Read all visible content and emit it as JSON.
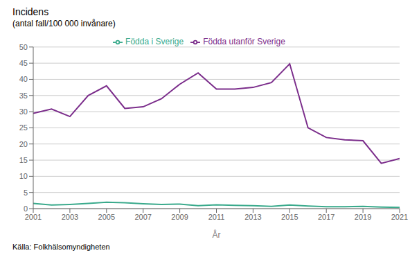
{
  "chart_data": {
    "type": "line",
    "title": "Incidens",
    "subtitle": "(antal fall/100 000 invånare)",
    "xlabel": "År",
    "x": [
      2001,
      2002,
      2003,
      2004,
      2005,
      2006,
      2007,
      2008,
      2009,
      2010,
      2011,
      2012,
      2013,
      2014,
      2015,
      2016,
      2017,
      2018,
      2019,
      2020,
      2021
    ],
    "series": [
      {
        "name": "Födda i Sverige",
        "color": "#3aaa8c",
        "values": [
          1.6,
          1.1,
          1.3,
          1.6,
          2.0,
          1.8,
          1.5,
          1.3,
          1.4,
          0.9,
          1.2,
          1.0,
          0.9,
          0.7,
          1.1,
          0.8,
          0.6,
          0.6,
          0.7,
          0.5,
          0.4
        ]
      },
      {
        "name": "Födda utanför Sverige",
        "color": "#7b2d8b",
        "values": [
          29.5,
          30.8,
          28.5,
          35.0,
          38.0,
          31.0,
          31.5,
          34.0,
          38.5,
          42.0,
          37.0,
          37.0,
          37.5,
          39.0,
          44.8,
          25.0,
          22.0,
          21.3,
          21.0,
          14.0,
          15.5
        ]
      }
    ],
    "xlim": [
      2001,
      2021
    ],
    "xticks": [
      2001,
      2003,
      2005,
      2007,
      2009,
      2011,
      2013,
      2015,
      2017,
      2019,
      2021
    ],
    "ylim": [
      0,
      50
    ],
    "yticks": [
      0,
      5,
      10,
      15,
      20,
      25,
      30,
      35,
      40,
      45,
      50
    ],
    "grid": true,
    "legend": "top",
    "annotations": [
      "Källa: Folkhälsomyndigheten"
    ]
  }
}
